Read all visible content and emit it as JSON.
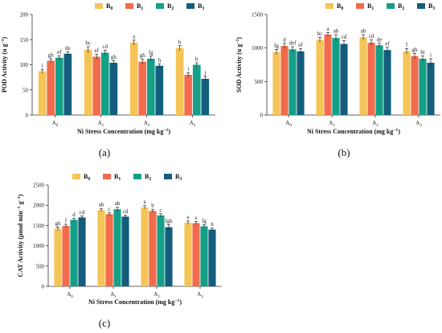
{
  "colors": [
    "#F4C456",
    "#F26B4C",
    "#14A087",
    "#145E7D"
  ],
  "legend_labels": [
    "B0",
    "B1",
    "B2",
    "B3"
  ],
  "chart_data": [
    {
      "type": "bar",
      "panel_label": "(a)",
      "categories": [
        "A0",
        "A1",
        "A2",
        "A3"
      ],
      "ylabel": "POD Activity (u g⁻¹)",
      "xlabel": "Ni Stress Concentration (mg kg⁻¹)",
      "ylim": [
        0,
        200
      ],
      "yticks": [
        0,
        50,
        100,
        150,
        200
      ],
      "series": [
        {
          "name": "B0",
          "values": [
            87,
            130,
            144,
            133
          ],
          "errors": [
            4,
            6,
            5,
            5
          ],
          "letters": [
            "i",
            "bc",
            "a",
            "b"
          ]
        },
        {
          "name": "B1",
          "values": [
            108,
            116,
            106,
            80
          ],
          "errors": [
            4,
            5,
            5,
            4
          ],
          "letters": [
            "gh",
            "ef",
            "gh",
            "i"
          ]
        },
        {
          "name": "B2",
          "values": [
            114,
            124,
            112,
            100
          ],
          "errors": [
            4,
            5,
            5,
            4
          ],
          "letters": [
            "ef",
            "cd",
            "fg",
            "h"
          ]
        },
        {
          "name": "B3",
          "values": [
            122,
            104,
            98,
            72
          ],
          "errors": [
            4,
            4,
            4,
            5
          ],
          "letters": [
            "de",
            "gh",
            "h",
            "j"
          ]
        }
      ]
    },
    {
      "type": "bar",
      "panel_label": "(b)",
      "categories": [
        "A0",
        "A1",
        "A2",
        "A3"
      ],
      "ylabel": "SOD Activity (u g⁻¹)",
      "xlabel": "Ni Stress Concentration (mg kg⁻¹)",
      "ylim": [
        0,
        1500
      ],
      "yticks": [
        0,
        500,
        1000,
        1500
      ],
      "series": [
        {
          "name": "B0",
          "values": [
            940,
            1120,
            1160,
            950
          ],
          "errors": [
            40,
            40,
            40,
            40
          ],
          "letters": [
            "fg",
            "bc",
            "ab",
            "f"
          ]
        },
        {
          "name": "B1",
          "values": [
            1030,
            1200,
            1080,
            880
          ],
          "errors": [
            40,
            30,
            40,
            40
          ],
          "letters": [
            "d",
            "a",
            "cd",
            "gh"
          ]
        },
        {
          "name": "B2",
          "values": [
            980,
            1150,
            1040,
            840
          ],
          "errors": [
            40,
            50,
            30,
            40
          ],
          "letters": [
            "def",
            "ab",
            "de",
            "hi"
          ]
        },
        {
          "name": "B3",
          "values": [
            950,
            1060,
            970,
            780
          ],
          "errors": [
            40,
            50,
            40,
            60
          ],
          "letters": [
            "ef",
            "cd",
            "ef",
            "i"
          ]
        }
      ]
    },
    {
      "type": "bar",
      "panel_label": "(c)",
      "categories": [
        "A0",
        "A1",
        "A2",
        "A3"
      ],
      "ylabel": "CAT Activity (μmol min⁻¹ g⁻¹)",
      "xlabel": "Ni Stress Concentration (mg kg⁻¹)",
      "ylim": [
        0,
        2500
      ],
      "yticks": [
        0,
        500,
        1000,
        1500,
        2000,
        2500
      ],
      "series": [
        {
          "name": "B0",
          "values": [
            1420,
            1880,
            1950,
            1570
          ],
          "errors": [
            40,
            40,
            40,
            40
          ],
          "letters": [
            "gh",
            "ab",
            "a",
            "e"
          ]
        },
        {
          "name": "B1",
          "values": [
            1490,
            1780,
            1860,
            1560
          ],
          "errors": [
            40,
            40,
            40,
            40
          ],
          "letters": [
            "f",
            "c",
            "b",
            "e"
          ]
        },
        {
          "name": "B2",
          "values": [
            1640,
            1900,
            1750,
            1480
          ],
          "errors": [
            40,
            50,
            40,
            40
          ],
          "letters": [
            "d",
            "ab",
            "c",
            "fg"
          ]
        },
        {
          "name": "B3",
          "values": [
            1700,
            1720,
            1460,
            1400
          ],
          "errors": [
            40,
            40,
            60,
            40
          ],
          "letters": [
            "cd",
            "cd",
            "fgh",
            "h"
          ]
        }
      ]
    }
  ]
}
